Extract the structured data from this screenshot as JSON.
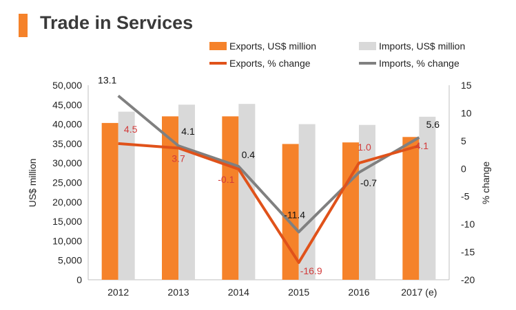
{
  "header": {
    "title": "Trade in Services"
  },
  "colors": {
    "exports": "#f5822a",
    "imports": "#d9d9d9",
    "exports_line": "#e0521a",
    "imports_line": "#808080",
    "accent": "#f5822a",
    "label_red": "#d23a3a"
  },
  "chart_data": {
    "type": "bar",
    "title": "Trade in Services",
    "categories": [
      "2012",
      "2013",
      "2014",
      "2015",
      "2016",
      "2017 (e)"
    ],
    "ylabel": "US$ million",
    "y2label": "% change",
    "ylim": [
      0,
      50000
    ],
    "y2lim": [
      -20,
      15
    ],
    "yticks": [
      "50,000",
      "45,000",
      "40,000",
      "35,000",
      "30,000",
      "25,000",
      "20,000",
      "15,000",
      "10,000",
      "5,000",
      "0"
    ],
    "y2ticks": [
      "15",
      "10",
      "5",
      "0",
      "-5",
      "-10",
      "-15",
      "-20"
    ],
    "bar_series": [
      {
        "name": "Exports, US$ million",
        "values": [
          40300,
          42000,
          42000,
          34900,
          35300,
          36700
        ]
      },
      {
        "name": "Imports, US$ million",
        "values": [
          43200,
          45000,
          45200,
          40000,
          39800,
          41900
        ]
      }
    ],
    "line_series": [
      {
        "name": "Exports, % change",
        "values": [
          4.5,
          3.7,
          -0.1,
          -16.9,
          1.0,
          4.1
        ],
        "labels": [
          "4.5",
          "3.7",
          "-0.1",
          "-16.9",
          "1.0",
          "4.1"
        ]
      },
      {
        "name": "Imports, % change",
        "values": [
          13.1,
          4.1,
          0.4,
          -11.4,
          -0.7,
          5.6
        ],
        "labels": [
          "13.1",
          "4.1",
          "0.4",
          "-11.4",
          "-0.7",
          "5.6"
        ]
      }
    ],
    "legend": "top-right"
  }
}
